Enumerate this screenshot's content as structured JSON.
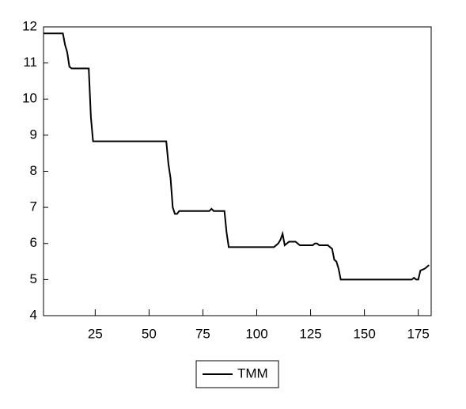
{
  "chart_data": {
    "type": "line",
    "x": [
      1,
      10,
      11,
      12,
      13,
      14,
      22,
      23,
      24,
      58,
      59,
      60,
      61,
      62,
      63,
      64,
      78,
      79,
      80,
      85,
      86,
      87,
      108,
      110,
      111,
      112,
      113,
      115,
      118,
      120,
      126,
      127,
      128,
      129,
      133,
      135,
      136,
      137,
      138,
      139,
      172,
      173,
      174,
      175,
      176,
      178,
      180
    ],
    "series": [
      {
        "name": "TMM",
        "color": "#000000",
        "values": [
          11.82,
          11.82,
          11.5,
          11.3,
          10.9,
          10.85,
          10.85,
          9.5,
          8.83,
          8.83,
          8.2,
          7.8,
          7.0,
          6.82,
          6.82,
          6.9,
          6.9,
          6.96,
          6.9,
          6.9,
          6.3,
          5.9,
          5.9,
          6.0,
          6.1,
          6.27,
          5.95,
          6.05,
          6.05,
          5.95,
          5.95,
          6.0,
          6.0,
          5.95,
          5.95,
          5.85,
          5.55,
          5.5,
          5.3,
          5.0,
          5.0,
          5.05,
          5.0,
          5.0,
          5.25,
          5.3,
          5.4
        ]
      }
    ],
    "xlim": [
      1,
      181
    ],
    "xticks": [
      25,
      50,
      75,
      100,
      125,
      150,
      175
    ],
    "ylim": [
      4,
      12
    ],
    "yticks": [
      4,
      5,
      6,
      7,
      8,
      9,
      10,
      11,
      12
    ],
    "legend": "bottom"
  }
}
